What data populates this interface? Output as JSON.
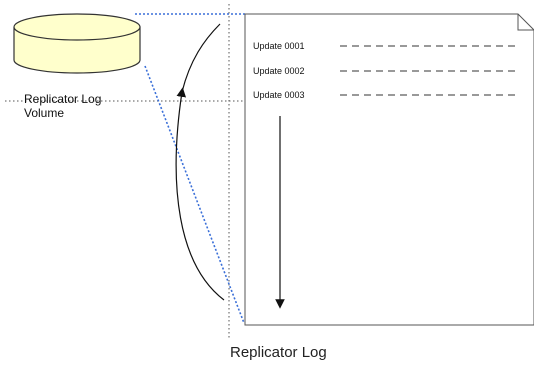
{
  "volume": {
    "label_line1": "Replicator Log",
    "label_line2": "Volume",
    "fill_color": "#ffffcc",
    "stroke_color": "#333333"
  },
  "log": {
    "entries": [
      "Update 0001",
      "Update 0002",
      "Update 0003"
    ],
    "caption": "Replicator Log"
  },
  "colors": {
    "projection_line": "#3a6fd8",
    "guide_line": "#555555",
    "arrow": "#111111"
  }
}
